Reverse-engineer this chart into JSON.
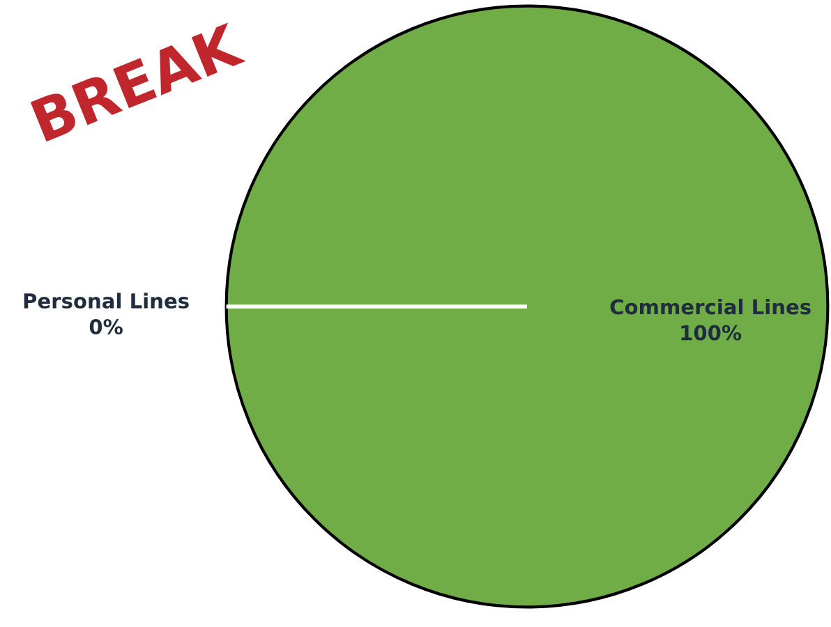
{
  "chart_data": {
    "type": "pie",
    "categories": [
      "Personal Lines",
      "Commercial Lines"
    ],
    "values": [
      0,
      100
    ],
    "value_labels": [
      "0%",
      "100%"
    ],
    "colors": [
      "#ffffff",
      "#70ad47"
    ],
    "annotations": [
      "BREAK"
    ]
  }
}
